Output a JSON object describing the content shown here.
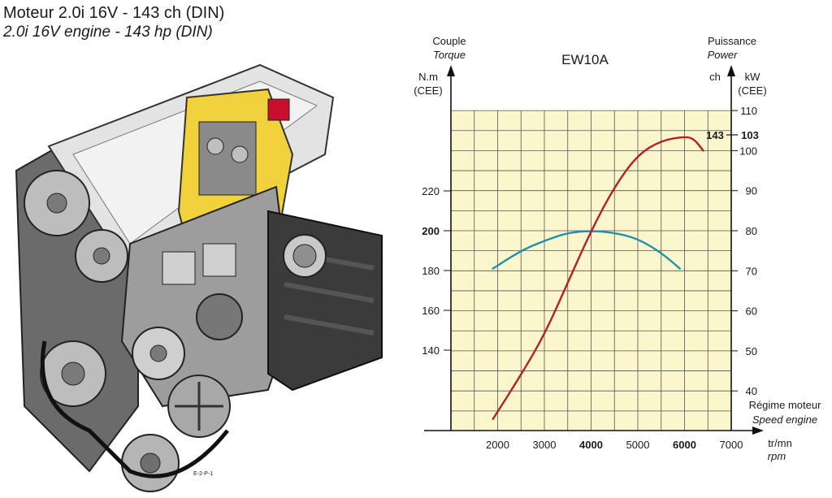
{
  "header": {
    "title_fr": "Moteur 2.0i 16V - 143 ch (DIN)",
    "title_en": "2.0i 16V engine - 143 hp (DIN)"
  },
  "illustration": {
    "badge": "E-2-P-1"
  },
  "chart_data": {
    "type": "line",
    "title": "EW10A",
    "x": [
      2000,
      3000,
      4000,
      5000,
      6000,
      7000
    ],
    "x_tick_labels": [
      "2000",
      "3000",
      "4000",
      "5000",
      "6000",
      "7000"
    ],
    "x_bold_ticks": [
      "4000",
      "6000"
    ],
    "xlabel_fr": "Régime moteur",
    "xlabel_en": "Speed engine",
    "x_unit_fr": "tr/mn",
    "x_unit_en": "rpm",
    "xlim": [
      1000,
      7000
    ],
    "left_axis": {
      "label_fr": "Couple",
      "label_en": "Torque",
      "unit": "N.m",
      "unit_sub": "(CEE)",
      "ticks": [
        "140",
        "160",
        "180",
        "200",
        "220"
      ],
      "bold_tick": "200",
      "tick_values": [
        140,
        160,
        180,
        200,
        220
      ]
    },
    "right_axis": {
      "label_fr": "Puissance",
      "label_en": "Power",
      "unit_ch": "ch",
      "unit": "kW",
      "unit_sub": "(CEE)",
      "ticks": [
        "40",
        "50",
        "60",
        "70",
        "80",
        "90",
        "100",
        "110"
      ],
      "tick_values": [
        40,
        50,
        60,
        70,
        80,
        90,
        100,
        110
      ],
      "peak_ch": "143",
      "peak_kw": "103",
      "ylim": [
        30,
        110
      ]
    },
    "grid": true,
    "background_color": "#fcf6cc",
    "series": [
      {
        "key": "torque",
        "axis": "left",
        "color": "#1e90b0",
        "points": [
          [
            1900,
            181
          ],
          [
            2500,
            190
          ],
          [
            3000,
            195
          ],
          [
            3500,
            199
          ],
          [
            4000,
            200
          ],
          [
            4500,
            199
          ],
          [
            5000,
            196
          ],
          [
            5500,
            189
          ],
          [
            5900,
            181
          ]
        ]
      },
      {
        "key": "power",
        "axis": "right",
        "color": "#b3202a",
        "points": [
          [
            1900,
            33
          ],
          [
            2500,
            44
          ],
          [
            3000,
            54
          ],
          [
            3500,
            67
          ],
          [
            4000,
            80
          ],
          [
            4500,
            91
          ],
          [
            5000,
            99
          ],
          [
            5500,
            102.5
          ],
          [
            6000,
            103.5
          ],
          [
            6200,
            103
          ],
          [
            6400,
            100
          ]
        ]
      }
    ]
  }
}
